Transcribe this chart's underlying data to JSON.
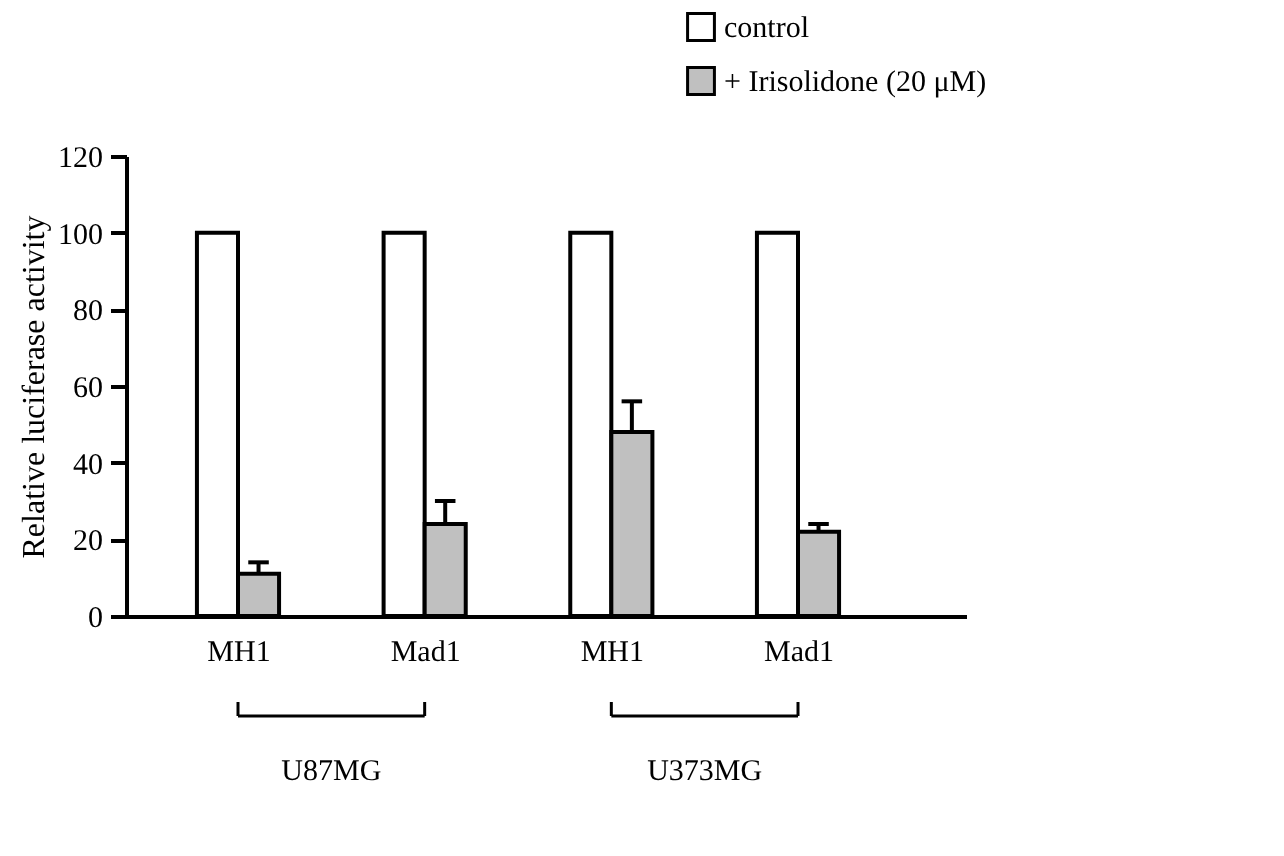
{
  "chart_data": {
    "type": "bar",
    "ylabel": "Relative luciferase activity",
    "categories": [
      "MH1",
      "Mad1",
      "MH1",
      "Mad1"
    ],
    "series": [
      {
        "name": "control",
        "color": "#ffffff",
        "values": [
          100,
          100,
          100,
          100
        ]
      },
      {
        "name": "+ Irisolidone (20 μM)",
        "color": "#c0c0c0",
        "values": [
          11,
          24,
          48,
          22
        ],
        "errors": [
          [
            11,
            14
          ],
          [
            24,
            30
          ],
          [
            48,
            56
          ],
          [
            22,
            24
          ]
        ]
      }
    ],
    "ylim": [
      0,
      120
    ],
    "yticks": [
      0,
      20,
      40,
      60,
      80,
      100,
      120
    ],
    "grid": false,
    "legend": "top right",
    "annotations": [
      "U87MG",
      "U373MG"
    ]
  }
}
